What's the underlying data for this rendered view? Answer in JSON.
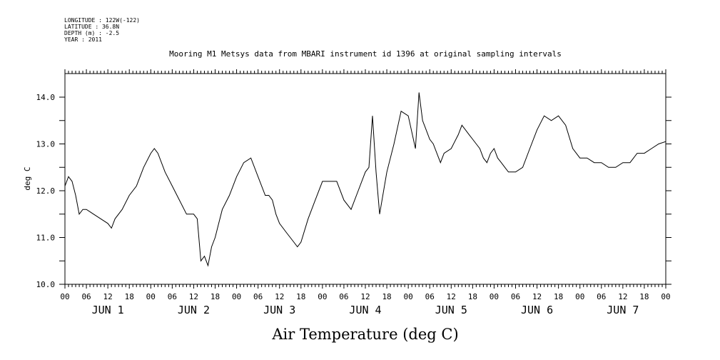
{
  "header": {
    "meta_lines": [
      "LONGITUDE : 122W(-122)",
      "LATITUDE : 36.8N",
      "DEPTH (m) : -2.5",
      "YEAR : 2011"
    ],
    "title": "Mooring M1 Metsys data from MBARI instrument id 1396 at original sampling intervals"
  },
  "chart_data": {
    "type": "line",
    "title": "Mooring M1 Metsys data from MBARI instrument id 1396 at original sampling intervals",
    "xlabel": "Air Temperature (deg C)",
    "ylabel": "deg C",
    "ylim": [
      10.0,
      14.2
    ],
    "yticks": [
      "10.0",
      "11.0",
      "12.0",
      "13.0",
      "14.0"
    ],
    "x_unit": "hours since JUN 1 00:00",
    "xlim": [
      0,
      168
    ],
    "hour_tick_labels": [
      "00",
      "06",
      "12",
      "18",
      "00",
      "06",
      "12",
      "18",
      "00",
      "06",
      "12",
      "18",
      "00",
      "06",
      "12",
      "18",
      "00",
      "06",
      "12",
      "18",
      "00",
      "06",
      "12",
      "18",
      "00",
      "06",
      "12",
      "18",
      "00"
    ],
    "day_labels": [
      "JUN 1",
      "JUN 2",
      "JUN 3",
      "JUN 4",
      "JUN 5",
      "JUN 6",
      "JUN 7"
    ],
    "grid": false,
    "legend": "none",
    "line_color": "#000000",
    "series": [
      {
        "x": [
          0,
          1,
          2,
          3,
          4,
          5,
          6,
          8,
          10,
          12,
          13,
          14,
          16,
          18,
          20,
          22,
          24,
          25,
          26,
          28,
          30,
          32,
          34,
          36,
          37,
          38,
          39,
          40,
          41,
          42,
          43,
          44,
          46,
          48,
          50,
          52,
          54,
          56,
          57,
          58,
          59,
          60,
          62,
          64,
          65,
          66,
          68,
          70,
          72,
          74,
          76,
          78,
          80,
          82,
          84,
          85,
          86,
          87,
          88,
          90,
          92,
          94,
          96,
          98,
          99,
          100,
          101,
          102,
          103,
          104,
          105,
          106,
          108,
          110,
          111,
          112,
          113,
          114,
          115,
          116,
          117,
          118,
          119,
          120,
          121,
          122,
          123,
          124,
          126,
          128,
          130,
          132,
          134,
          136,
          138,
          140,
          142,
          144,
          146,
          148,
          150,
          152,
          154,
          156,
          158,
          160,
          162,
          164,
          166,
          168
        ],
        "y": [
          12.1,
          12.3,
          12.2,
          11.9,
          11.5,
          11.6,
          11.6,
          11.5,
          11.4,
          11.3,
          11.2,
          11.4,
          11.6,
          11.9,
          12.1,
          12.5,
          12.8,
          12.9,
          12.8,
          12.4,
          12.1,
          11.8,
          11.5,
          11.5,
          11.4,
          10.5,
          10.6,
          10.4,
          10.8,
          11.0,
          11.3,
          11.6,
          11.9,
          12.3,
          12.6,
          12.7,
          12.3,
          11.9,
          11.9,
          11.8,
          11.5,
          11.3,
          11.1,
          10.9,
          10.8,
          10.9,
          11.4,
          11.8,
          12.2,
          12.2,
          12.2,
          11.8,
          11.6,
          12.0,
          12.4,
          12.5,
          13.6,
          12.4,
          11.5,
          12.4,
          13.0,
          13.7,
          13.6,
          12.9,
          14.1,
          13.5,
          13.3,
          13.1,
          13.0,
          12.8,
          12.6,
          12.8,
          12.9,
          13.2,
          13.4,
          13.3,
          13.2,
          13.1,
          13.0,
          12.9,
          12.7,
          12.6,
          12.8,
          12.9,
          12.7,
          12.6,
          12.5,
          12.4,
          12.4,
          12.5,
          12.9,
          13.3,
          13.6,
          13.5,
          13.6,
          13.4,
          12.9,
          12.7,
          12.7,
          12.6,
          12.6,
          12.5,
          12.5,
          12.6,
          12.6,
          12.8,
          12.8,
          12.9,
          13.0,
          13.05
        ]
      }
    ]
  }
}
